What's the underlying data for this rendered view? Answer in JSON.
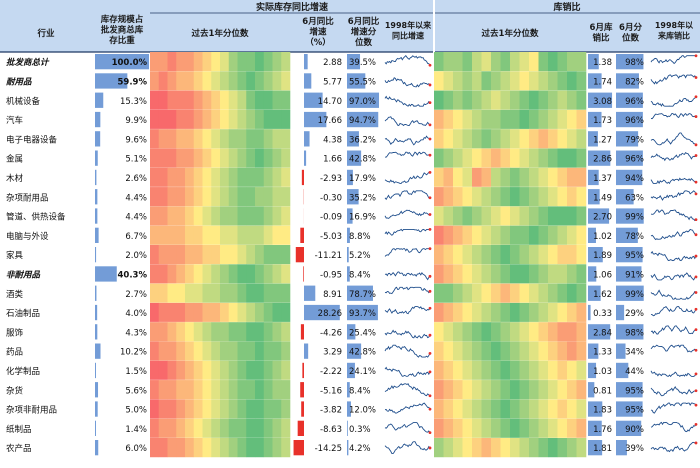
{
  "header": {
    "group_inventory": "实际库存同比增速",
    "group_ratio": "库销比",
    "col_industry": "行业",
    "col_weight": "库存规模占批发商总库存比重",
    "col_pct_inv": "过去1年分位数",
    "col_yoy": "6月同比增速（%）",
    "col_yoy_pct": "6月同比增速分位数",
    "col_spark_inv": "1998年以来同比增速",
    "col_pct_ratio": "过去1年分位数",
    "col_ratio": "6月库销比",
    "col_ratio_pct": "6月分位数",
    "col_spark_ratio": "1998年以来库销比"
  },
  "chart_data": {
    "type": "table",
    "rows": [
      {
        "name": "批发商总计",
        "italic": true,
        "weight": "100.0%",
        "w": 100.0,
        "yoy": "2.88",
        "y": 2.88,
        "yoy_pct": "39.5%",
        "yp": 39.5,
        "ratio": "1.38",
        "r": 1.38,
        "ratio_pct": "98%",
        "rp": 98
      },
      {
        "name": "耐用品",
        "italic": true,
        "weight": "59.9%",
        "w": 59.9,
        "yoy": "5.77",
        "y": 5.77,
        "yoy_pct": "55.5%",
        "yp": 55.5,
        "ratio": "1.74",
        "r": 1.74,
        "ratio_pct": "82%",
        "rp": 82
      },
      {
        "name": "机械设备",
        "weight": "15.3%",
        "w": 15.3,
        "yoy": "14.70",
        "y": 14.7,
        "yoy_pct": "97.0%",
        "yp": 97.0,
        "ratio": "3.08",
        "r": 3.08,
        "ratio_pct": "96%",
        "rp": 96
      },
      {
        "name": "汽车",
        "weight": "9.9%",
        "w": 9.9,
        "yoy": "17.66",
        "y": 17.66,
        "yoy_pct": "94.7%",
        "yp": 94.7,
        "ratio": "1.73",
        "r": 1.73,
        "ratio_pct": "96%",
        "rp": 96
      },
      {
        "name": "电子电器设备",
        "weight": "9.6%",
        "w": 9.6,
        "yoy": "4.38",
        "y": 4.38,
        "yoy_pct": "36.2%",
        "yp": 36.2,
        "ratio": "1.27",
        "r": 1.27,
        "ratio_pct": "79%",
        "rp": 79
      },
      {
        "name": "金属",
        "weight": "5.1%",
        "w": 5.1,
        "yoy": "1.66",
        "y": 1.66,
        "yoy_pct": "42.8%",
        "yp": 42.8,
        "ratio": "2.86",
        "r": 2.86,
        "ratio_pct": "96%",
        "rp": 96
      },
      {
        "name": "木材",
        "weight": "2.6%",
        "w": 2.6,
        "yoy": "-2.93",
        "y": -2.93,
        "yoy_pct": "17.9%",
        "yp": 17.9,
        "ratio": "1.37",
        "r": 1.37,
        "ratio_pct": "94%",
        "rp": 94
      },
      {
        "name": "杂项耐用品",
        "weight": "4.4%",
        "w": 4.4,
        "yoy": "-0.30",
        "y": -0.3,
        "yoy_pct": "35.2%",
        "yp": 35.2,
        "ratio": "1.49",
        "r": 1.49,
        "ratio_pct": "63%",
        "rp": 63
      },
      {
        "name": "管道、供热设备",
        "weight": "4.4%",
        "w": 4.4,
        "yoy": "-0.09",
        "y": -0.09,
        "yoy_pct": "16.9%",
        "yp": 16.9,
        "ratio": "2.70",
        "r": 2.7,
        "ratio_pct": "99%",
        "rp": 99
      },
      {
        "name": "电脑与外设",
        "weight": "6.7%",
        "w": 6.7,
        "yoy": "-5.03",
        "y": -5.03,
        "yoy_pct": "8.8%",
        "yp": 8.8,
        "ratio": "1.02",
        "r": 1.02,
        "ratio_pct": "78%",
        "rp": 78
      },
      {
        "name": "家具",
        "weight": "2.0%",
        "w": 2.0,
        "yoy": "-11.21",
        "y": -11.21,
        "yoy_pct": "5.2%",
        "yp": 5.2,
        "ratio": "1.89",
        "r": 1.89,
        "ratio_pct": "95%",
        "rp": 95
      },
      {
        "name": "非耐用品",
        "italic": true,
        "weight": "40.3%",
        "w": 40.3,
        "yoy": "-0.95",
        "y": -0.95,
        "yoy_pct": "8.4%",
        "yp": 8.4,
        "ratio": "1.06",
        "r": 1.06,
        "ratio_pct": "91%",
        "rp": 91
      },
      {
        "name": "酒类",
        "weight": "2.7%",
        "w": 2.7,
        "yoy": "8.91",
        "y": 8.91,
        "yoy_pct": "78.7%",
        "yp": 78.7,
        "ratio": "1.62",
        "r": 1.62,
        "ratio_pct": "99%",
        "rp": 99
      },
      {
        "name": "石油制品",
        "weight": "4.0%",
        "w": 4.0,
        "yoy": "28.26",
        "y": 28.26,
        "yoy_pct": "93.7%",
        "yp": 93.7,
        "ratio": "0.33",
        "r": 0.33,
        "ratio_pct": "29%",
        "rp": 29
      },
      {
        "name": "服饰",
        "weight": "4.3%",
        "w": 4.3,
        "yoy": "-4.26",
        "y": -4.26,
        "yoy_pct": "25.4%",
        "yp": 25.4,
        "ratio": "2.84",
        "r": 2.84,
        "ratio_pct": "98%",
        "rp": 98
      },
      {
        "name": "药品",
        "weight": "10.2%",
        "w": 10.2,
        "yoy": "3.29",
        "y": 3.29,
        "yoy_pct": "42.8%",
        "yp": 42.8,
        "ratio": "1.33",
        "r": 1.33,
        "ratio_pct": "34%",
        "rp": 34
      },
      {
        "name": "化学制品",
        "weight": "1.5%",
        "w": 1.5,
        "yoy": "-2.22",
        "y": -2.22,
        "yoy_pct": "24.1%",
        "yp": 24.1,
        "ratio": "1.03",
        "r": 1.03,
        "ratio_pct": "44%",
        "rp": 44
      },
      {
        "name": "杂货",
        "weight": "5.6%",
        "w": 5.6,
        "yoy": "-5.16",
        "y": -5.16,
        "yoy_pct": "8.4%",
        "yp": 8.4,
        "ratio": "0.81",
        "r": 0.81,
        "ratio_pct": "95%",
        "rp": 95
      },
      {
        "name": "杂项非耐用品",
        "weight": "5.0%",
        "w": 5.0,
        "yoy": "-3.82",
        "y": -3.82,
        "yoy_pct": "12.0%",
        "yp": 12.0,
        "ratio": "1.83",
        "r": 1.83,
        "ratio_pct": "95%",
        "rp": 95
      },
      {
        "name": "纸制品",
        "weight": "1.4%",
        "w": 1.4,
        "yoy": "-8.63",
        "y": -8.63,
        "yoy_pct": "0.3%",
        "yp": 0.3,
        "ratio": "1.76",
        "r": 1.76,
        "ratio_pct": "90%",
        "rp": 90
      },
      {
        "name": "农产品",
        "weight": "6.0%",
        "w": 6.0,
        "yoy": "-14.25",
        "y": -14.25,
        "yoy_pct": "4.2%",
        "yp": 4.2,
        "ratio": "1.81",
        "r": 1.81,
        "ratio_pct": "39%",
        "rp": 39
      }
    ],
    "heatmap_inventory": [
      [
        2,
        2,
        1,
        2,
        2,
        3,
        4,
        5,
        6,
        8,
        9,
        9,
        10,
        9,
        8,
        7
      ],
      [
        2,
        1,
        2,
        3,
        3,
        4,
        5,
        6,
        7,
        8,
        9,
        10,
        9,
        8,
        7,
        6
      ],
      [
        0,
        0,
        1,
        1,
        1,
        2,
        3,
        4,
        5,
        6,
        7,
        9,
        10,
        10,
        9,
        9
      ],
      [
        0,
        0,
        0,
        1,
        1,
        2,
        3,
        4,
        5,
        6,
        7,
        8,
        9,
        10,
        10,
        10
      ],
      [
        1,
        2,
        2,
        3,
        3,
        4,
        5,
        6,
        7,
        8,
        8,
        9,
        9,
        8,
        7,
        7
      ],
      [
        1,
        1,
        1,
        2,
        2,
        3,
        4,
        5,
        6,
        7,
        8,
        9,
        10,
        9,
        8,
        7
      ],
      [
        1,
        1,
        2,
        2,
        3,
        4,
        5,
        6,
        7,
        8,
        9,
        9,
        9,
        8,
        7,
        6
      ],
      [
        1,
        1,
        2,
        2,
        3,
        4,
        5,
        6,
        7,
        8,
        9,
        9,
        8,
        8,
        7,
        7
      ],
      [
        2,
        2,
        3,
        3,
        4,
        5,
        6,
        7,
        8,
        8,
        9,
        9,
        9,
        8,
        7,
        6
      ],
      [
        3,
        3,
        3,
        3,
        4,
        4,
        5,
        5,
        6,
        6,
        7,
        7,
        7,
        6,
        5,
        5
      ],
      [
        1,
        2,
        2,
        2,
        3,
        3,
        4,
        4,
        5,
        5,
        6,
        7,
        8,
        9,
        9,
        9
      ],
      [
        1,
        1,
        2,
        3,
        4,
        5,
        6,
        7,
        8,
        9,
        10,
        10,
        9,
        8,
        7,
        6
      ],
      [
        4,
        4,
        5,
        5,
        6,
        6,
        7,
        7,
        8,
        8,
        9,
        10,
        10,
        9,
        9,
        9
      ],
      [
        0,
        1,
        1,
        1,
        2,
        2,
        3,
        3,
        4,
        5,
        6,
        7,
        8,
        9,
        10,
        10
      ],
      [
        2,
        2,
        3,
        4,
        5,
        6,
        7,
        8,
        8,
        9,
        9,
        10,
        10,
        9,
        8,
        7
      ],
      [
        1,
        2,
        2,
        3,
        4,
        5,
        6,
        7,
        8,
        8,
        9,
        9,
        10,
        9,
        9,
        8
      ],
      [
        0,
        0,
        1,
        2,
        3,
        4,
        5,
        6,
        7,
        8,
        9,
        10,
        10,
        9,
        8,
        7
      ],
      [
        1,
        2,
        2,
        3,
        3,
        4,
        5,
        6,
        7,
        8,
        9,
        9,
        10,
        9,
        8,
        8
      ],
      [
        0,
        1,
        1,
        2,
        3,
        4,
        5,
        6,
        7,
        8,
        9,
        10,
        10,
        9,
        9,
        8
      ],
      [
        1,
        2,
        2,
        3,
        4,
        5,
        6,
        7,
        8,
        9,
        9,
        10,
        10,
        9,
        8,
        7
      ],
      [
        1,
        1,
        2,
        2,
        3,
        4,
        5,
        6,
        7,
        8,
        9,
        10,
        10,
        9,
        8,
        7
      ]
    ],
    "heatmap_ratio": [
      [
        9,
        8,
        8,
        9,
        7,
        6,
        8,
        9,
        7,
        6,
        5,
        9,
        10,
        9,
        8,
        8
      ],
      [
        5,
        6,
        7,
        8,
        7,
        9,
        8,
        7,
        6,
        5,
        6,
        7,
        8,
        9,
        10,
        9
      ],
      [
        10,
        9,
        8,
        9,
        8,
        7,
        6,
        7,
        8,
        9,
        10,
        9,
        8,
        7,
        8,
        9
      ],
      [
        3,
        4,
        5,
        6,
        7,
        8,
        8,
        9,
        9,
        10,
        9,
        8,
        7,
        6,
        5,
        4
      ],
      [
        4,
        5,
        6,
        7,
        8,
        9,
        8,
        7,
        6,
        5,
        4,
        3,
        4,
        5,
        6,
        7
      ],
      [
        9,
        8,
        7,
        6,
        5,
        4,
        3,
        4,
        5,
        6,
        7,
        8,
        9,
        10,
        10,
        9
      ],
      [
        4,
        3,
        5,
        6,
        2,
        3,
        7,
        8,
        9,
        8,
        7,
        6,
        5,
        4,
        3,
        3
      ],
      [
        2,
        3,
        4,
        5,
        6,
        7,
        8,
        9,
        10,
        9,
        8,
        7,
        6,
        5,
        4,
        5
      ],
      [
        6,
        7,
        8,
        9,
        8,
        7,
        6,
        5,
        6,
        7,
        8,
        9,
        10,
        10,
        10,
        9
      ],
      [
        1,
        2,
        3,
        4,
        5,
        6,
        7,
        8,
        9,
        9,
        10,
        9,
        8,
        7,
        6,
        5
      ],
      [
        3,
        4,
        5,
        6,
        7,
        8,
        9,
        10,
        9,
        8,
        7,
        6,
        5,
        4,
        4,
        5
      ],
      [
        2,
        3,
        4,
        5,
        6,
        7,
        8,
        9,
        10,
        10,
        9,
        8,
        7,
        7,
        8,
        9
      ],
      [
        9,
        9,
        8,
        7,
        6,
        5,
        4,
        3,
        4,
        5,
        6,
        7,
        8,
        9,
        10,
        9
      ],
      [
        2,
        3,
        4,
        5,
        6,
        7,
        8,
        9,
        10,
        9,
        8,
        7,
        6,
        5,
        4,
        3
      ],
      [
        5,
        6,
        7,
        8,
        9,
        10,
        9,
        8,
        7,
        6,
        5,
        4,
        3,
        2,
        2,
        3
      ],
      [
        4,
        5,
        6,
        7,
        8,
        9,
        10,
        9,
        8,
        7,
        6,
        5,
        4,
        3,
        2,
        3
      ],
      [
        3,
        4,
        5,
        6,
        7,
        8,
        9,
        10,
        9,
        8,
        7,
        6,
        5,
        4,
        5,
        6
      ],
      [
        2,
        3,
        4,
        5,
        6,
        7,
        8,
        9,
        10,
        9,
        8,
        7,
        6,
        5,
        4,
        3
      ],
      [
        3,
        4,
        5,
        6,
        7,
        8,
        9,
        10,
        9,
        8,
        7,
        6,
        5,
        4,
        5,
        6
      ],
      [
        2,
        3,
        4,
        5,
        6,
        7,
        8,
        9,
        10,
        9,
        8,
        7,
        6,
        5,
        4,
        3
      ],
      [
        8,
        7,
        6,
        5,
        4,
        3,
        4,
        5,
        6,
        7,
        8,
        9,
        10,
        9,
        8,
        7
      ]
    ],
    "colors": {
      "header_bg": "#c5d9f1",
      "databar": "#5b8bd0",
      "negbar": "#e8312a",
      "spark": "#1f4e8c",
      "spark_last": "#e8312a",
      "scale": [
        "#f8696b",
        "#f98370",
        "#fa9d75",
        "#fcb77a",
        "#fdd17f",
        "#ffeb84",
        "#e0e383",
        "#c0da81",
        "#a1d07f",
        "#81c77d",
        "#63be7b"
      ]
    }
  }
}
